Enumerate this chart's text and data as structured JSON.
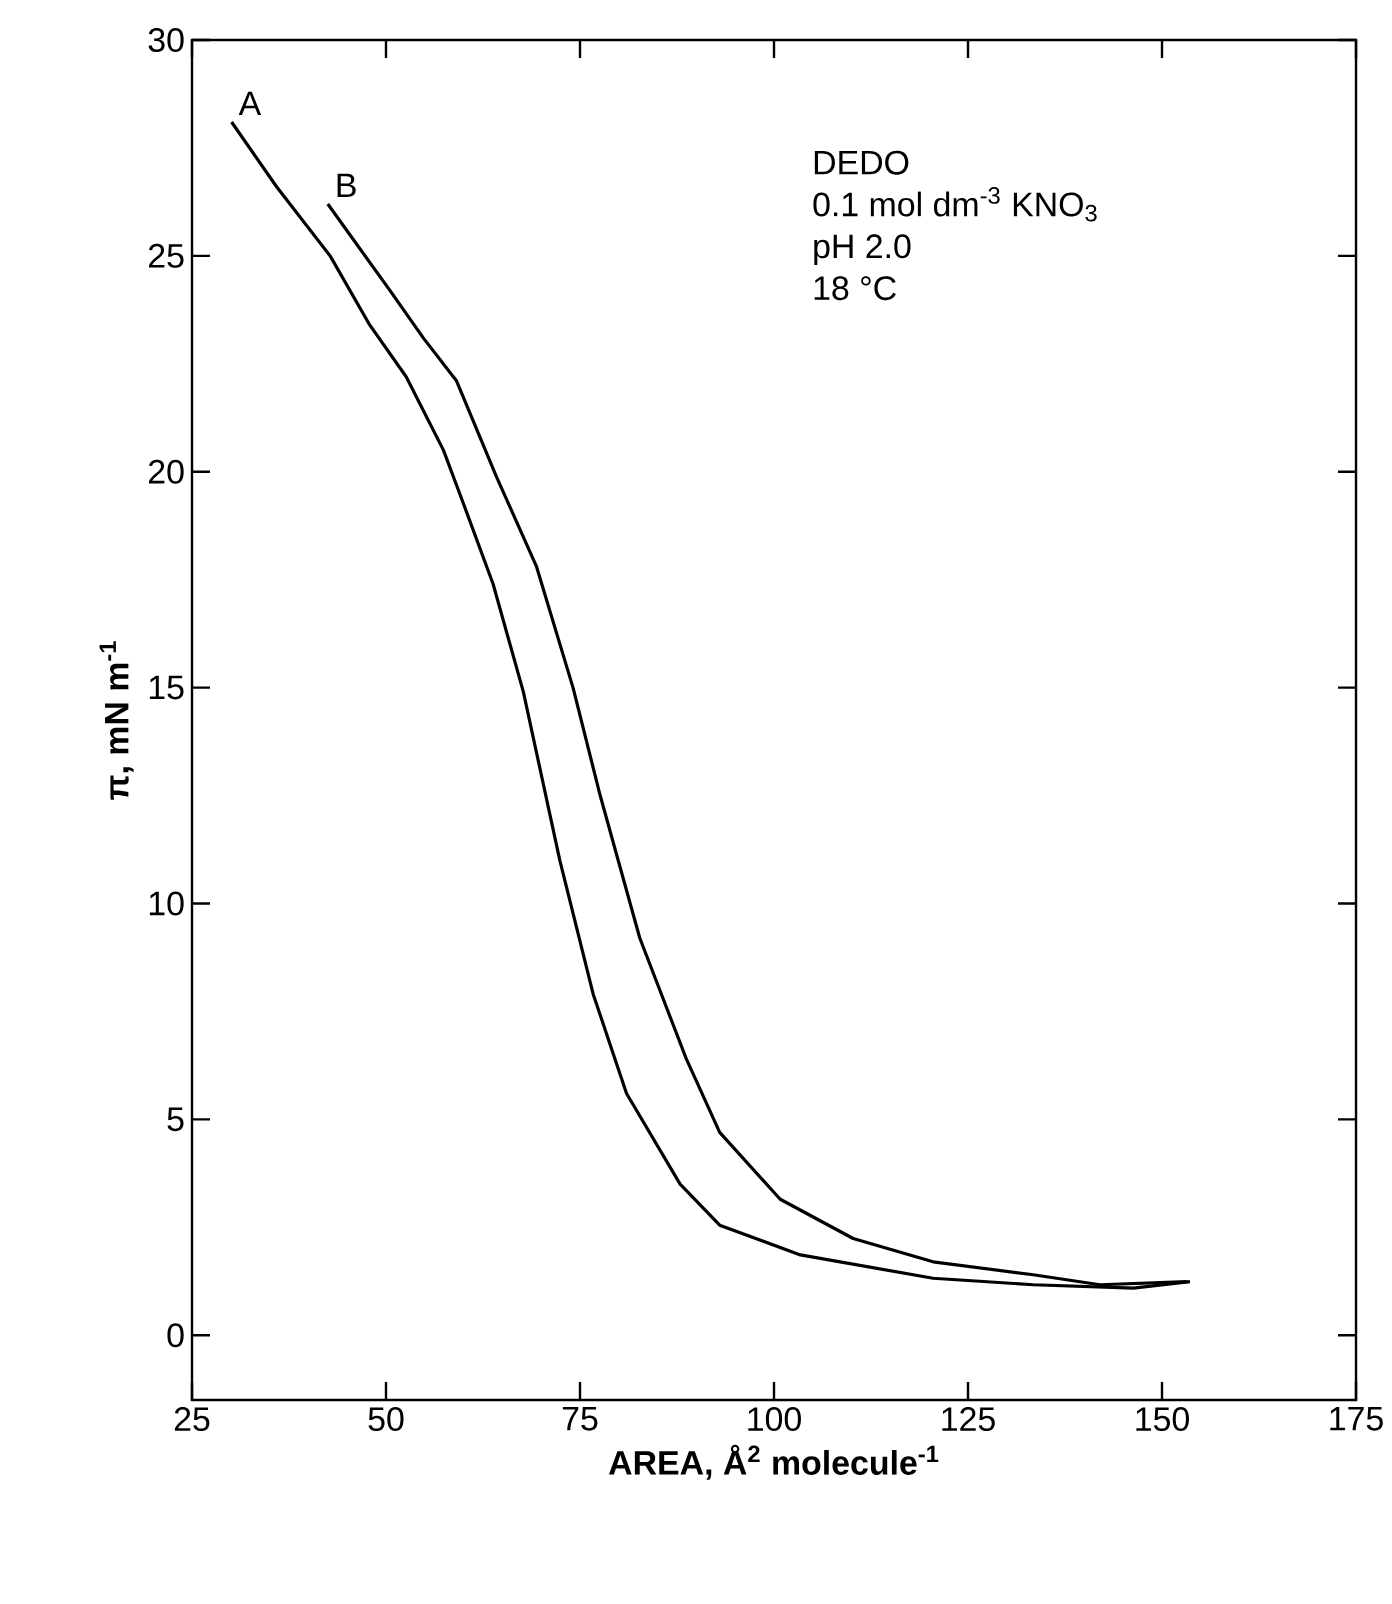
{
  "chart_data": {
    "type": "line",
    "xlabel": "AREA,  Å$^{2}$ molecule$^{-1}$",
    "ylabel": "π,  mN m$^{-1}$",
    "xlim": [
      25,
      175
    ],
    "xticks": [
      25,
      50,
      75,
      100,
      125,
      150,
      175
    ],
    "ylim": [
      -1.5,
      30
    ],
    "yticks": [
      0,
      5,
      10,
      15,
      20,
      25,
      30
    ],
    "grid": false,
    "marker": "none",
    "line_style": "solid",
    "annotations": [
      "DEDO",
      "0.1 mol dm$^{-3}$ KNO$_{3}$",
      "pH  2.0",
      "18  °C"
    ],
    "series": [
      {
        "name": "A",
        "color": "#000000",
        "x": [
          30.1,
          35.9,
          42.8,
          47.9,
          52.6,
          57.4,
          59.9,
          63.8,
          67.7,
          72.4,
          76.7,
          81.0,
          87.9,
          93.0,
          103.4,
          120.5,
          133.4,
          146.3,
          153.6
        ],
        "values": [
          28.1,
          26.6,
          25.0,
          23.4,
          22.2,
          20.5,
          19.3,
          17.4,
          14.9,
          11.0,
          7.9,
          5.6,
          3.5,
          2.55,
          1.86,
          1.32,
          1.17,
          1.09,
          1.24
        ]
      },
      {
        "name": "B",
        "color": "#000000",
        "x": [
          42.5,
          50.5,
          54.8,
          59.1,
          64.2,
          69.4,
          74.1,
          77.6,
          82.7,
          88.7,
          93.0,
          100.8,
          110.2,
          120.5,
          133.4,
          142.0,
          153.2
        ],
        "values": [
          26.2,
          24.2,
          23.1,
          22.1,
          19.9,
          17.8,
          15.0,
          12.5,
          9.2,
          6.4,
          4.7,
          3.15,
          2.24,
          1.7,
          1.4,
          1.17,
          1.24
        ]
      }
    ]
  }
}
